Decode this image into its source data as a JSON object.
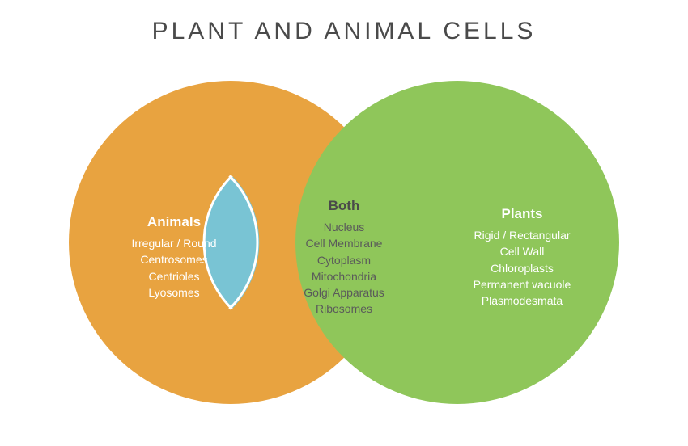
{
  "type": "venn-diagram",
  "title": "Plant and Animal Cells",
  "title_fontsize": 30,
  "title_color": "#4a4a4a",
  "title_letterspacing": 4,
  "background_color": "#ffffff",
  "circle_diameter": 400,
  "circle_overlap": 120,
  "left": {
    "header": "Animals",
    "color": "#e8a340",
    "text_color": "#ffffff",
    "items": [
      "Irregular / Round",
      "Centrosomes",
      "Centrioles",
      "Lyosomes"
    ]
  },
  "center": {
    "header": "Both",
    "color": "#79c4d4",
    "text_color": "#4a4a4a",
    "items": [
      "Nucleus",
      "Cell Membrane",
      "Cytoplasm",
      "Mitochondria",
      "Golgi Apparatus",
      "Ribosomes"
    ]
  },
  "right": {
    "header": "Plants",
    "color": "#8fc65a",
    "text_color": "#ffffff",
    "items": [
      "Rigid / Rectangular",
      "Cell Wall",
      "Chloroplasts",
      "Permanent vacuole",
      "Plasmodesmata"
    ]
  },
  "header_fontsize": 17,
  "item_fontsize": 14
}
